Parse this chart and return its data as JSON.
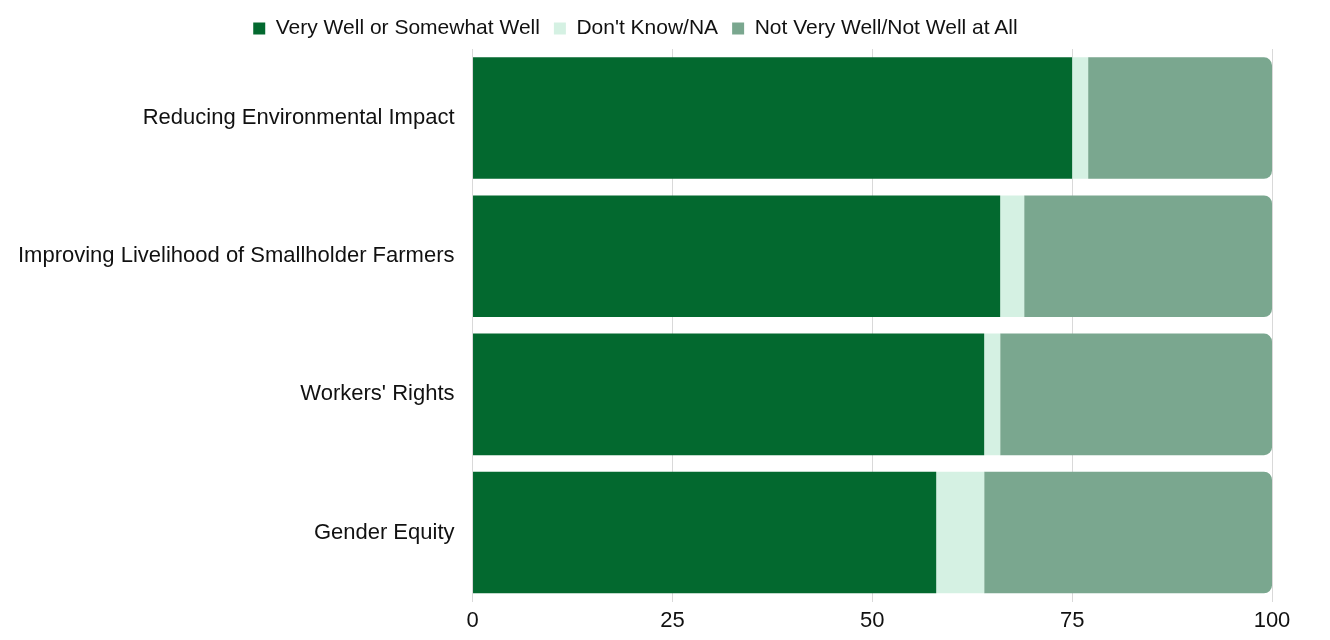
{
  "chart_data": {
    "type": "bar",
    "orientation": "horizontal",
    "stacked": true,
    "categories": [
      "Reducing Environmental Impact",
      "Improving Livelihood of Smallholder Farmers",
      "Workers' Rights",
      "Gender Equity"
    ],
    "series": [
      {
        "name": "Very Well or Somewhat Well",
        "color": "#03692f",
        "values": [
          75,
          66,
          64,
          58
        ]
      },
      {
        "name": "Don't Know/NA",
        "color": "#d5f1e3",
        "values": [
          2,
          3,
          2,
          6
        ]
      },
      {
        "name": "Not Very Well/Not Well at All",
        "color": "#7aa78f",
        "values": [
          23,
          31,
          34,
          36
        ]
      }
    ],
    "xlim": [
      0,
      100
    ],
    "xticks": [
      0,
      25,
      50,
      75,
      100
    ],
    "grid": "x",
    "legend": "top"
  }
}
